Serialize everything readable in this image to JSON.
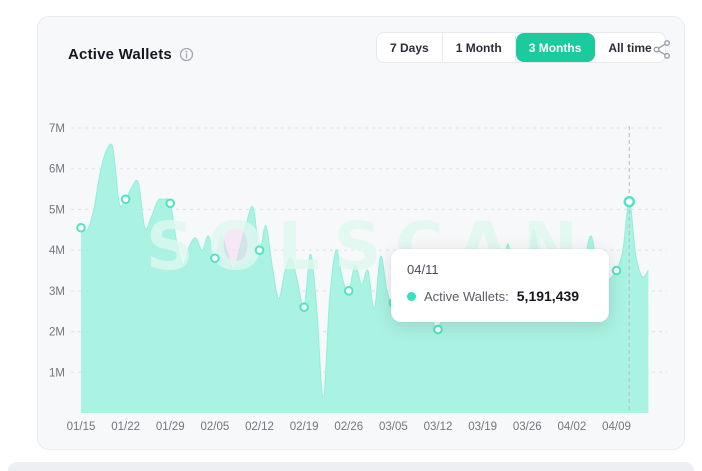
{
  "card": {
    "title": "Active Wallets",
    "ranges": [
      {
        "label": "7 Days",
        "active": false
      },
      {
        "label": "1 Month",
        "active": false
      },
      {
        "label": "3 Months",
        "active": true
      },
      {
        "label": "All time",
        "active": false
      }
    ]
  },
  "tooltip": {
    "date": "04/11",
    "series_label": "Active Wallets:",
    "value": "5,191,439"
  },
  "watermark": "SOLSCAN",
  "colors": {
    "accent_green": "#1bcb9d",
    "area_fill": "#a4f1e0",
    "area_stroke": "#8ff0db",
    "marker_stroke": "#4fe4c3",
    "grid": "#e0e2e6",
    "axis_text": "#72767e",
    "hover_line": "#b6bac2",
    "watermark_fill": "rgba(222,247,240,0.8)",
    "watermark_blob": "rgba(244,216,239,0.55)"
  },
  "chart_data": {
    "type": "area",
    "title": "Active Wallets",
    "ylabel": "Active Wallets",
    "ylim": [
      0,
      7000000
    ],
    "y_tick_labels": [
      "1M",
      "2M",
      "3M",
      "4M",
      "5M",
      "6M",
      "7M"
    ],
    "x_tick_labels": [
      "01/15",
      "01/22",
      "01/29",
      "02/05",
      "02/12",
      "02/19",
      "02/26",
      "03/05",
      "03/12",
      "03/19",
      "03/26",
      "04/02",
      "04/09"
    ],
    "grid": "horizontal-dashed",
    "marker_every": 7,
    "dates": [
      "01/15",
      "01/16",
      "01/17",
      "01/18",
      "01/19",
      "01/20",
      "01/21",
      "01/22",
      "01/23",
      "01/24",
      "01/25",
      "01/26",
      "01/27",
      "01/28",
      "01/29",
      "01/30",
      "01/31",
      "02/01",
      "02/02",
      "02/03",
      "02/04",
      "02/05",
      "02/06",
      "02/07",
      "02/08",
      "02/09",
      "02/10",
      "02/11",
      "02/12",
      "02/13",
      "02/14",
      "02/15",
      "02/16",
      "02/17",
      "02/18",
      "02/19",
      "02/20",
      "02/21",
      "02/22",
      "02/23",
      "02/24",
      "02/25",
      "02/26",
      "02/27",
      "02/28",
      "03/01",
      "03/02",
      "03/03",
      "03/04",
      "03/05",
      "03/06",
      "03/07",
      "03/08",
      "03/09",
      "03/10",
      "03/11",
      "03/12",
      "03/13",
      "03/14",
      "03/15",
      "03/16",
      "03/17",
      "03/18",
      "03/19",
      "03/20",
      "03/21",
      "03/22",
      "03/23",
      "03/24",
      "03/25",
      "03/26",
      "03/27",
      "03/28",
      "03/29",
      "03/30",
      "03/31",
      "04/01",
      "04/02",
      "04/03",
      "04/04",
      "04/05",
      "04/06",
      "04/07",
      "04/08",
      "04/09",
      "04/10",
      "04/11",
      "04/12",
      "04/13",
      "04/14"
    ],
    "values_millions": [
      4.55,
      4.5,
      5.0,
      5.9,
      6.45,
      6.5,
      5.15,
      5.25,
      5.55,
      5.65,
      4.55,
      4.8,
      5.2,
      5.25,
      5.15,
      4.2,
      3.65,
      4.1,
      4.3,
      4.0,
      4.35,
      3.8,
      4.35,
      3.9,
      3.55,
      4.1,
      4.7,
      5.05,
      4.0,
      4.6,
      3.6,
      2.8,
      3.5,
      3.8,
      3.2,
      2.6,
      3.9,
      2.5,
      0.35,
      2.8,
      4.0,
      3.3,
      3.0,
      3.65,
      3.15,
      3.5,
      2.55,
      3.85,
      3.0,
      2.7,
      3.6,
      2.9,
      3.55,
      2.8,
      2.5,
      2.3,
      2.05,
      2.6,
      2.9,
      2.6,
      2.8,
      3.0,
      2.9,
      3.1,
      3.3,
      3.0,
      3.4,
      4.15,
      3.2,
      3.4,
      3.3,
      4.5,
      3.5,
      3.1,
      3.2,
      3.0,
      3.1,
      3.2,
      3.5,
      3.8,
      4.35,
      3.6,
      3.2,
      3.3,
      3.5,
      4.0,
      5.19,
      3.9,
      3.35,
      3.5
    ],
    "hover": {
      "index": 86,
      "date": "04/11",
      "value": 5191439
    }
  }
}
